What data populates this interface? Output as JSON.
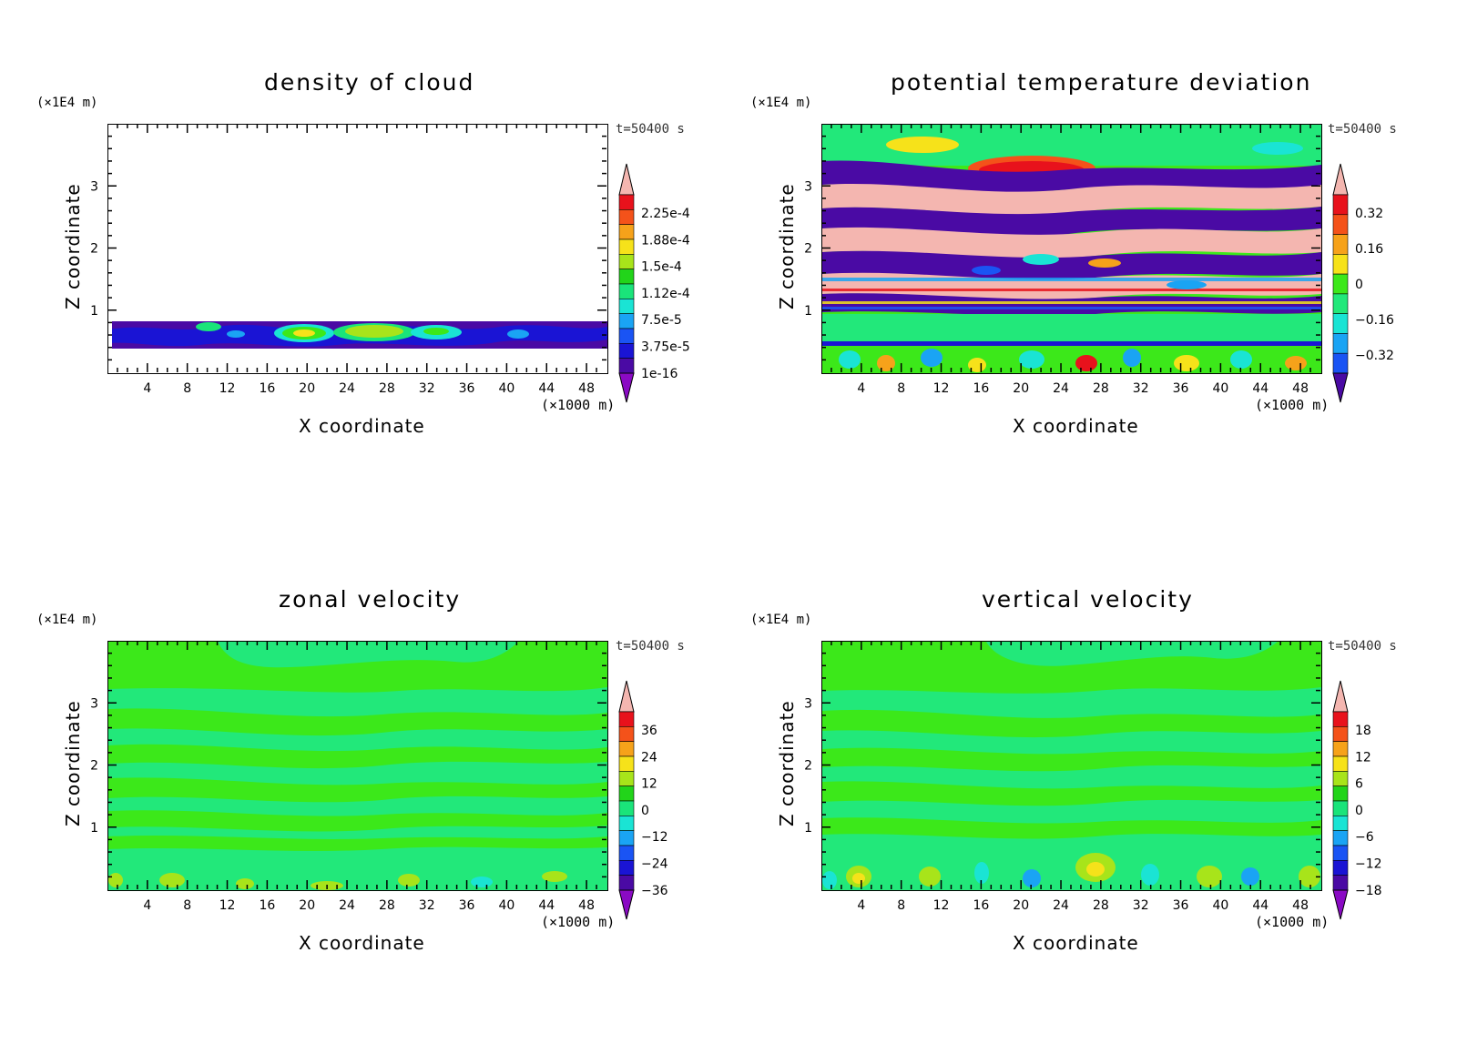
{
  "chart_data": [
    {
      "type": "heatmap",
      "title": "density of cloud",
      "time_label": "t=50400 s",
      "y_unit": "(×1E4 m)",
      "x_unit": "(×1000 m)",
      "xlabel": "X coordinate",
      "ylabel": "Z coordinate",
      "xticks": [
        "4",
        "8",
        "12",
        "16",
        "20",
        "24",
        "28",
        "32",
        "36",
        "40",
        "44",
        "48"
      ],
      "yticks": [
        "1",
        "2",
        "3"
      ],
      "xlim": [
        0,
        50
      ],
      "ylim": [
        0,
        4
      ],
      "colorbar_labels": [
        "2.25e-4",
        "1.88e-4",
        "1.5e-4",
        "1.12e-4",
        "7.5e-5",
        "3.75e-5",
        "1e-16"
      ]
    },
    {
      "type": "heatmap",
      "title": "potential temperature deviation",
      "time_label": "t=50400 s",
      "y_unit": "(×1E4 m)",
      "x_unit": "(×1000 m)",
      "xlabel": "X coordinate",
      "ylabel": "Z coordinate",
      "xticks": [
        "4",
        "8",
        "12",
        "16",
        "20",
        "24",
        "28",
        "32",
        "36",
        "40",
        "44",
        "48"
      ],
      "yticks": [
        "1",
        "2",
        "3"
      ],
      "xlim": [
        0,
        50
      ],
      "ylim": [
        0,
        4
      ],
      "colorbar_labels": [
        "0.32",
        "0.16",
        "0",
        "−0.16",
        "−0.32"
      ]
    },
    {
      "type": "heatmap",
      "title": "zonal velocity",
      "time_label": "t=50400 s",
      "y_unit": "(×1E4 m)",
      "x_unit": "(×1000 m)",
      "xlabel": "X coordinate",
      "ylabel": "Z coordinate",
      "xticks": [
        "4",
        "8",
        "12",
        "16",
        "20",
        "24",
        "28",
        "32",
        "36",
        "40",
        "44",
        "48"
      ],
      "yticks": [
        "1",
        "2",
        "3"
      ],
      "xlim": [
        0,
        50
      ],
      "ylim": [
        0,
        4
      ],
      "colorbar_labels": [
        "36",
        "24",
        "12",
        "0",
        "−12",
        "−24",
        "−36"
      ]
    },
    {
      "type": "heatmap",
      "title": "vertical velocity",
      "time_label": "t=50400 s",
      "y_unit": "(×1E4 m)",
      "x_unit": "(×1000 m)",
      "xlabel": "X coordinate",
      "ylabel": "Z coordinate",
      "xticks": [
        "4",
        "8",
        "12",
        "16",
        "20",
        "24",
        "28",
        "32",
        "36",
        "40",
        "44",
        "48"
      ],
      "yticks": [
        "1",
        "2",
        "3"
      ],
      "xlim": [
        0,
        50
      ],
      "ylim": [
        0,
        4
      ],
      "colorbar_labels": [
        "18",
        "12",
        "6",
        "0",
        "−6",
        "−12",
        "−18"
      ]
    }
  ],
  "colors": {
    "colorbar": [
      "#f4b6b0",
      "#e8121c",
      "#f4521a",
      "#f6a21a",
      "#f6e21a",
      "#a8e41a",
      "#22d41a",
      "#1ae47a",
      "#1ae4d4",
      "#1aa4f4",
      "#1a54f4",
      "#1a14d4",
      "#4a0aa4",
      "#8a0ac4"
    ],
    "pale_green": "#22e87a",
    "green": "#3ce81a"
  }
}
